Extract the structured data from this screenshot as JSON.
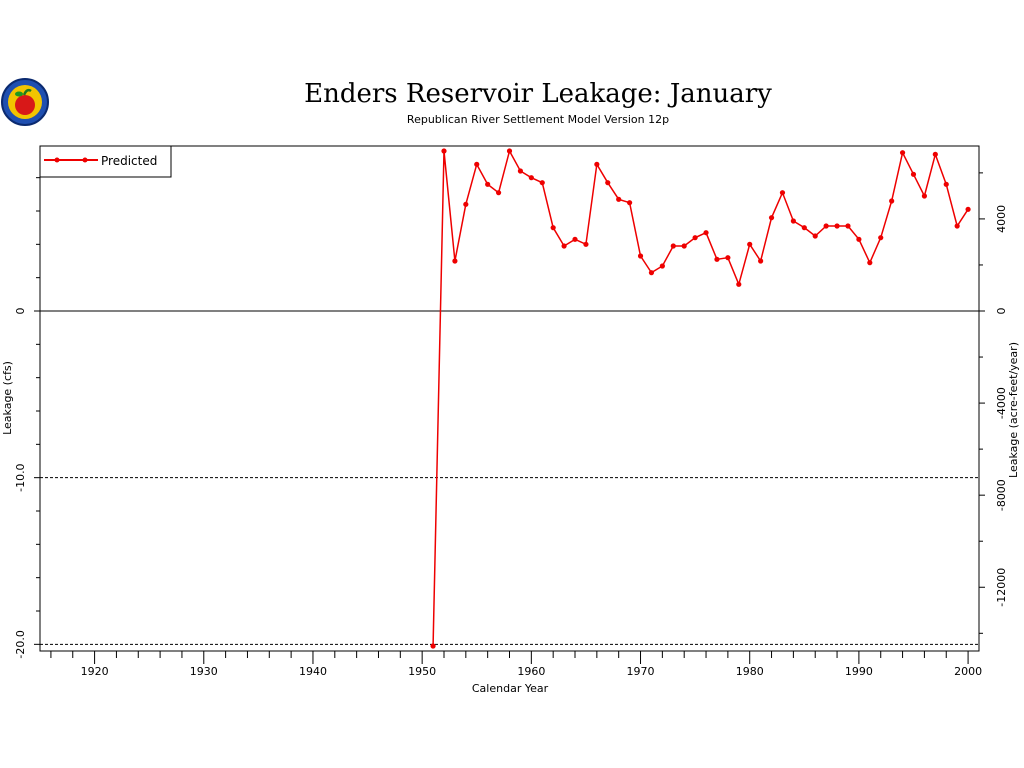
{
  "chart_data": {
    "type": "line",
    "title": "Enders Reservoir Leakage: January",
    "subtitle": "Republican River Settlement Model Version 12p",
    "xlabel": "Calendar Year",
    "ylabel": "Leakage (cfs)",
    "y2label": "Leakage (acre-feet/year)",
    "xlim": [
      1915,
      2001
    ],
    "ylim": [
      -20.4,
      9.9
    ],
    "x_ticks": [
      "1920",
      "1930",
      "1940",
      "1950",
      "1960",
      "1970",
      "1980",
      "1990",
      "2000"
    ],
    "y_ticks": [
      "0",
      "-10.0",
      "-20.0"
    ],
    "y2_ticks": [
      "4000",
      "0",
      "-4000",
      "-8000",
      "-12000"
    ],
    "reference_lines": [
      {
        "y": 0,
        "style": "solid"
      },
      {
        "y": -10,
        "style": "dashed"
      },
      {
        "y": -20,
        "style": "dashed"
      }
    ],
    "legend": {
      "position": "top-left",
      "entries": [
        "Predicted"
      ]
    },
    "series": [
      {
        "name": "Predicted",
        "color": "#ee0000",
        "x": [
          1951,
          1952,
          1953,
          1954,
          1955,
          1956,
          1957,
          1958,
          1959,
          1960,
          1961,
          1962,
          1963,
          1964,
          1965,
          1966,
          1967,
          1968,
          1969,
          1970,
          1971,
          1972,
          1973,
          1974,
          1975,
          1976,
          1977,
          1978,
          1979,
          1980,
          1981,
          1982,
          1983,
          1984,
          1985,
          1986,
          1987,
          1988,
          1989,
          1990,
          1991,
          1992,
          1993,
          1994,
          1995,
          1996,
          1997,
          1998,
          1999,
          2000
        ],
        "y": [
          -20.1,
          9.6,
          3.0,
          6.4,
          8.8,
          7.6,
          7.1,
          9.6,
          8.4,
          8.0,
          7.7,
          5.0,
          3.9,
          4.3,
          4.0,
          8.8,
          7.7,
          6.7,
          6.5,
          3.3,
          2.3,
          2.7,
          3.9,
          3.9,
          4.4,
          4.7,
          3.1,
          3.2,
          1.6,
          4.0,
          3.0,
          5.6,
          7.1,
          5.4,
          5.0,
          4.5,
          5.1,
          5.1,
          5.1,
          4.3,
          2.9,
          4.4,
          6.6,
          9.5,
          8.2,
          6.9,
          9.4,
          7.6,
          5.1,
          6.1
        ]
      }
    ]
  }
}
